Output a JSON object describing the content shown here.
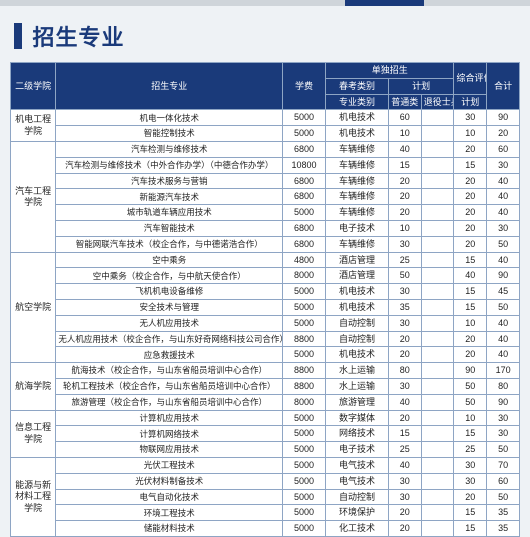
{
  "title": "招生专业",
  "header": {
    "college": "二级学院",
    "major": "招生专业",
    "fee": "学费",
    "dudu": "单独招生",
    "chunkao": "春考类别",
    "jihua": "计划",
    "zhuanye": "专业类别",
    "putong": "普通类",
    "tuiyi": "退役士兵",
    "comp": "综合评价",
    "compplan": "计划",
    "total": "合计"
  },
  "groups": [
    {
      "college": "机电工程学院",
      "rows": [
        {
          "major": "机电一体化技术",
          "fee": "5000",
          "cat": "机电技术",
          "c1": "60",
          "c2": "",
          "c3": "30",
          "c4": "90"
        },
        {
          "major": "智能控制技术",
          "fee": "5000",
          "cat": "机电技术",
          "c1": "10",
          "c2": "",
          "c3": "10",
          "c4": "20"
        }
      ]
    },
    {
      "college": "汽车工程学院",
      "rows": [
        {
          "major": "汽车检测与维修技术",
          "fee": "6800",
          "cat": "车辆维修",
          "c1": "40",
          "c2": "",
          "c3": "20",
          "c4": "60"
        },
        {
          "major": "汽车检测与维修技术（中外合作办学）（中德合作办学）",
          "fee": "10800",
          "cat": "车辆维修",
          "c1": "15",
          "c2": "",
          "c3": "15",
          "c4": "30"
        },
        {
          "major": "汽车技术服务与营销",
          "fee": "6800",
          "cat": "车辆维修",
          "c1": "20",
          "c2": "",
          "c3": "20",
          "c4": "40"
        },
        {
          "major": "新能源汽车技术",
          "fee": "6800",
          "cat": "车辆维修",
          "c1": "20",
          "c2": "",
          "c3": "20",
          "c4": "40"
        },
        {
          "major": "城市轨道车辆应用技术",
          "fee": "5000",
          "cat": "车辆维修",
          "c1": "20",
          "c2": "",
          "c3": "20",
          "c4": "40"
        },
        {
          "major": "汽车智能技术",
          "fee": "6800",
          "cat": "电子技术",
          "c1": "10",
          "c2": "",
          "c3": "20",
          "c4": "30"
        },
        {
          "major": "智能网联汽车技术（校企合作，与中德诺浩合作）",
          "fee": "6800",
          "cat": "车辆维修",
          "c1": "30",
          "c2": "",
          "c3": "20",
          "c4": "50"
        }
      ]
    },
    {
      "college": "航空学院",
      "rows": [
        {
          "major": "空中乘务",
          "fee": "4800",
          "cat": "酒店管理",
          "c1": "25",
          "c2": "",
          "c3": "15",
          "c4": "40"
        },
        {
          "major": "空中乘务（校企合作，与中航天使合作）",
          "fee": "8000",
          "cat": "酒店管理",
          "c1": "50",
          "c2": "",
          "c3": "40",
          "c4": "90"
        },
        {
          "major": "飞机机电设备维修",
          "fee": "5000",
          "cat": "机电技术",
          "c1": "30",
          "c2": "",
          "c3": "15",
          "c4": "45"
        },
        {
          "major": "安全技术与管理",
          "fee": "5000",
          "cat": "机电技术",
          "c1": "35",
          "c2": "",
          "c3": "15",
          "c4": "50"
        },
        {
          "major": "无人机应用技术",
          "fee": "5000",
          "cat": "自动控制",
          "c1": "30",
          "c2": "",
          "c3": "10",
          "c4": "40"
        },
        {
          "major": "无人机应用技术（校企合作，与山东好奇网络科技公司合作）",
          "fee": "8800",
          "cat": "自动控制",
          "c1": "20",
          "c2": "",
          "c3": "20",
          "c4": "40"
        },
        {
          "major": "应急救援技术",
          "fee": "5000",
          "cat": "机电技术",
          "c1": "20",
          "c2": "",
          "c3": "20",
          "c4": "40"
        }
      ]
    },
    {
      "college": "航海学院",
      "rows": [
        {
          "major": "航海技术（校企合作，与山东省船员培训中心合作）",
          "fee": "8800",
          "cat": "水上运输",
          "c1": "80",
          "c2": "",
          "c3": "90",
          "c4": "170"
        },
        {
          "major": "轮机工程技术（校企合作，与山东省船员培训中心合作）",
          "fee": "8800",
          "cat": "水上运输",
          "c1": "30",
          "c2": "",
          "c3": "50",
          "c4": "80"
        },
        {
          "major": "旅游管理（校企合作，与山东省船员培训中心合作）",
          "fee": "8000",
          "cat": "旅游管理",
          "c1": "40",
          "c2": "",
          "c3": "50",
          "c4": "90"
        }
      ]
    },
    {
      "college": "信息工程学院",
      "rows": [
        {
          "major": "计算机应用技术",
          "fee": "5000",
          "cat": "数字媒体",
          "c1": "20",
          "c2": "",
          "c3": "10",
          "c4": "30"
        },
        {
          "major": "计算机网络技术",
          "fee": "5000",
          "cat": "网络技术",
          "c1": "15",
          "c2": "",
          "c3": "15",
          "c4": "30"
        },
        {
          "major": "物联网应用技术",
          "fee": "5000",
          "cat": "电子技术",
          "c1": "25",
          "c2": "",
          "c3": "25",
          "c4": "50"
        }
      ]
    },
    {
      "college": "能源与新材料工程学院",
      "rows": [
        {
          "major": "光伏工程技术",
          "fee": "5000",
          "cat": "电气技术",
          "c1": "40",
          "c2": "",
          "c3": "30",
          "c4": "70"
        },
        {
          "major": "光伏材料制备技术",
          "fee": "5000",
          "cat": "电气技术",
          "c1": "30",
          "c2": "",
          "c3": "30",
          "c4": "60"
        },
        {
          "major": "电气自动化技术",
          "fee": "5000",
          "cat": "自动控制",
          "c1": "30",
          "c2": "",
          "c3": "20",
          "c4": "50"
        },
        {
          "major": "环境工程技术",
          "fee": "5000",
          "cat": "环境保护",
          "c1": "20",
          "c2": "",
          "c3": "15",
          "c4": "35"
        },
        {
          "major": "储能材料技术",
          "fee": "5000",
          "cat": "化工技术",
          "c1": "20",
          "c2": "",
          "c3": "15",
          "c4": "35"
        }
      ]
    }
  ]
}
